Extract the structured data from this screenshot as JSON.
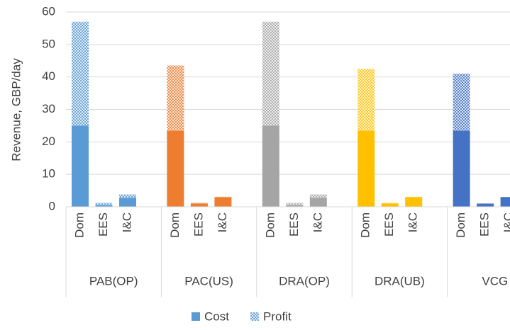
{
  "chart_data": {
    "type": "grouped_stacked_bar",
    "ylabel": "Revenue, GBP/day",
    "ylim": [
      0,
      60
    ],
    "yticks": [
      0,
      10,
      20,
      30,
      40,
      50,
      60
    ],
    "grid": true,
    "legend": [
      {
        "name": "Cost",
        "pattern": "solid"
      },
      {
        "name": "Profit",
        "pattern": "crosshatch"
      }
    ],
    "legend_color": "#5b9bd5",
    "groups": [
      {
        "name": "PAB(OP)",
        "color": "#5b9bd5",
        "categories": [
          "Dom",
          "EES",
          "I&C"
        ],
        "series": [
          {
            "name": "Cost",
            "values": [
              25,
              0.5,
              2.8
            ]
          },
          {
            "name": "Profit",
            "values": [
              32,
              0.7,
              1.0
            ]
          }
        ]
      },
      {
        "name": "PAC(US)",
        "color": "#ed7d31",
        "categories": [
          "Dom",
          "EES",
          "I&C"
        ],
        "series": [
          {
            "name": "Cost",
            "values": [
              23.5,
              1.0,
              3.0
            ]
          },
          {
            "name": "Profit",
            "values": [
              20,
              0.2,
              0.1
            ]
          }
        ]
      },
      {
        "name": "DRA(OP)",
        "color": "#a5a5a5",
        "categories": [
          "Dom",
          "EES",
          "I&C"
        ],
        "series": [
          {
            "name": "Cost",
            "values": [
              25,
              0.5,
              2.8
            ]
          },
          {
            "name": "Profit",
            "values": [
              32,
              0.7,
              1.0
            ]
          }
        ]
      },
      {
        "name": "DRA(UB)",
        "color": "#ffc000",
        "categories": [
          "Dom",
          "EES",
          "I&C"
        ],
        "series": [
          {
            "name": "Cost",
            "values": [
              23.5,
              1.0,
              3.0
            ]
          },
          {
            "name": "Profit",
            "values": [
              19,
              0.2,
              0.1
            ]
          }
        ]
      },
      {
        "name": "VCG",
        "color": "#4472c4",
        "categories": [
          "Dom",
          "EES",
          "I&C"
        ],
        "series": [
          {
            "name": "Cost",
            "values": [
              23.5,
              1.0,
              3.0
            ]
          },
          {
            "name": "Profit",
            "values": [
              17.5,
              0,
              0
            ]
          }
        ]
      }
    ]
  }
}
